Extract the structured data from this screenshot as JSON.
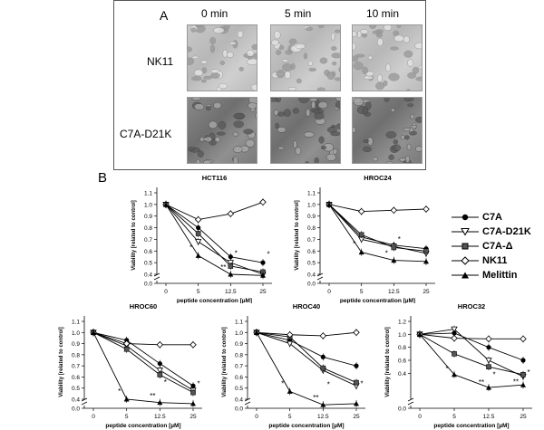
{
  "panel_a": {
    "label": "A",
    "columns": [
      "0 min",
      "5 min",
      "10 min"
    ],
    "rows": [
      "NK11",
      "C7A-D21K"
    ]
  },
  "panel_b": {
    "label": "B"
  },
  "legend": [
    {
      "name": "C7A",
      "marker": "circle-filled"
    },
    {
      "name": "C7A-D21K",
      "marker": "triangle-down-open"
    },
    {
      "name": "C7A-Δ",
      "marker": "square-filled"
    },
    {
      "name": "NK11",
      "marker": "diamond-open"
    },
    {
      "name": "Melittin",
      "marker": "triangle-up-filled"
    }
  ],
  "chart_data": [
    {
      "type": "line",
      "title": "HCT116",
      "xlabel": "peptide concentration [µM]",
      "ylabel": "Viability [related to control]",
      "categories": [
        "0",
        "5",
        "12.5",
        "25"
      ],
      "yticks": [
        "0.0",
        "0.4",
        "0.5",
        "0.6",
        "0.7",
        "0.8",
        "0.9",
        "1.0",
        "1.1"
      ],
      "ylim": [
        0.4,
        1.1
      ],
      "axis_break": true,
      "series": [
        {
          "name": "C7A",
          "values": [
            1.0,
            0.8,
            0.55,
            0.5
          ]
        },
        {
          "name": "C7A-D21K",
          "values": [
            1.0,
            0.68,
            0.5,
            0.4
          ]
        },
        {
          "name": "C7A-Δ",
          "values": [
            1.0,
            0.75,
            0.47,
            0.42
          ]
        },
        {
          "name": "NK11",
          "values": [
            1.0,
            0.87,
            0.92,
            1.02
          ]
        },
        {
          "name": "Melittin",
          "values": [
            1.0,
            0.56,
            0.4,
            0.39
          ]
        }
      ],
      "annotations": [
        "*",
        "*",
        "**",
        "*"
      ]
    },
    {
      "type": "line",
      "title": "HROC24",
      "xlabel": "peptide concentration [µM]",
      "ylabel": "Viability [related to control]",
      "categories": [
        "0",
        "5",
        "12.5",
        "25"
      ],
      "yticks": [
        "0.0",
        "0.4",
        "0.5",
        "0.6",
        "0.7",
        "0.8",
        "0.9",
        "1.0",
        "1.1"
      ],
      "ylim": [
        0.4,
        1.1
      ],
      "axis_break": true,
      "series": [
        {
          "name": "C7A",
          "values": [
            1.0,
            0.72,
            0.65,
            0.62
          ]
        },
        {
          "name": "C7A-D21K",
          "values": [
            1.0,
            0.7,
            0.64,
            0.58
          ]
        },
        {
          "name": "C7A-Δ",
          "values": [
            1.0,
            0.74,
            0.63,
            0.6
          ]
        },
        {
          "name": "NK11",
          "values": [
            1.0,
            0.94,
            0.95,
            0.96
          ]
        },
        {
          "name": "Melittin",
          "values": [
            1.0,
            0.59,
            0.52,
            0.51
          ]
        }
      ],
      "annotations": [
        "*",
        "*",
        "*"
      ]
    },
    {
      "type": "line",
      "title": "HROC60",
      "xlabel": "peptide concentration [µM]",
      "ylabel": "Viability [related to control]",
      "categories": [
        "0",
        "5",
        "12.5",
        "25"
      ],
      "yticks": [
        "0.0",
        "0.4",
        "0.5",
        "0.6",
        "0.7",
        "0.8",
        "0.9",
        "1.0",
        "1.1"
      ],
      "ylim": [
        0.4,
        1.1
      ],
      "axis_break": true,
      "series": [
        {
          "name": "C7A",
          "values": [
            1.0,
            0.93,
            0.72,
            0.52
          ]
        },
        {
          "name": "C7A-D21K",
          "values": [
            1.0,
            0.88,
            0.66,
            0.48
          ]
        },
        {
          "name": "C7A-Δ",
          "values": [
            1.0,
            0.85,
            0.62,
            0.46
          ]
        },
        {
          "name": "NK11",
          "values": [
            1.0,
            0.9,
            0.89,
            0.89
          ]
        },
        {
          "name": "Melittin",
          "values": [
            1.0,
            0.4,
            0.37,
            0.36
          ]
        }
      ],
      "annotations": [
        "*",
        "*",
        "**",
        "*"
      ]
    },
    {
      "type": "line",
      "title": "HROC40",
      "xlabel": "peptide concentration [µM]",
      "ylabel": "Viability [related to control]",
      "categories": [
        "0",
        "5",
        "12.5",
        "25"
      ],
      "yticks": [
        "0.0",
        "0.4",
        "0.5",
        "0.6",
        "0.7",
        "0.8",
        "0.9",
        "1.0",
        "1.1"
      ],
      "ylim": [
        0.4,
        1.1
      ],
      "axis_break": true,
      "series": [
        {
          "name": "C7A",
          "values": [
            1.0,
            0.93,
            0.78,
            0.7
          ]
        },
        {
          "name": "C7A-D21K",
          "values": [
            1.0,
            0.9,
            0.66,
            0.52
          ]
        },
        {
          "name": "C7A-Δ",
          "values": [
            1.0,
            0.96,
            0.68,
            0.55
          ]
        },
        {
          "name": "NK11",
          "values": [
            1.0,
            0.98,
            0.97,
            1.0
          ]
        },
        {
          "name": "Melittin",
          "values": [
            1.0,
            0.47,
            0.35,
            0.36
          ]
        }
      ],
      "annotations": [
        "*",
        "*",
        "**",
        "*"
      ]
    },
    {
      "type": "line",
      "title": "HROC32",
      "xlabel": "peptide concentration [µM]",
      "ylabel": "Viability [related to control]",
      "categories": [
        "0",
        "5",
        "12.5",
        "25"
      ],
      "yticks": [
        "0.0",
        "0.4",
        "0.6",
        "0.8",
        "1.0",
        "1.2"
      ],
      "ylim": [
        0.0,
        1.2
      ],
      "axis_break": true,
      "series": [
        {
          "name": "C7A",
          "values": [
            1.0,
            1.02,
            0.8,
            0.6
          ]
        },
        {
          "name": "C7A-D21K",
          "values": [
            1.0,
            1.08,
            0.6,
            0.35
          ]
        },
        {
          "name": "C7A-Δ",
          "values": [
            1.0,
            0.7,
            0.5,
            0.38
          ]
        },
        {
          "name": "NK11",
          "values": [
            1.0,
            0.94,
            0.93,
            0.93
          ]
        },
        {
          "name": "Melittin",
          "values": [
            1.0,
            0.38,
            0.18,
            0.22
          ]
        }
      ],
      "annotations": [
        "*",
        "*",
        "**",
        "*",
        "**"
      ]
    }
  ]
}
